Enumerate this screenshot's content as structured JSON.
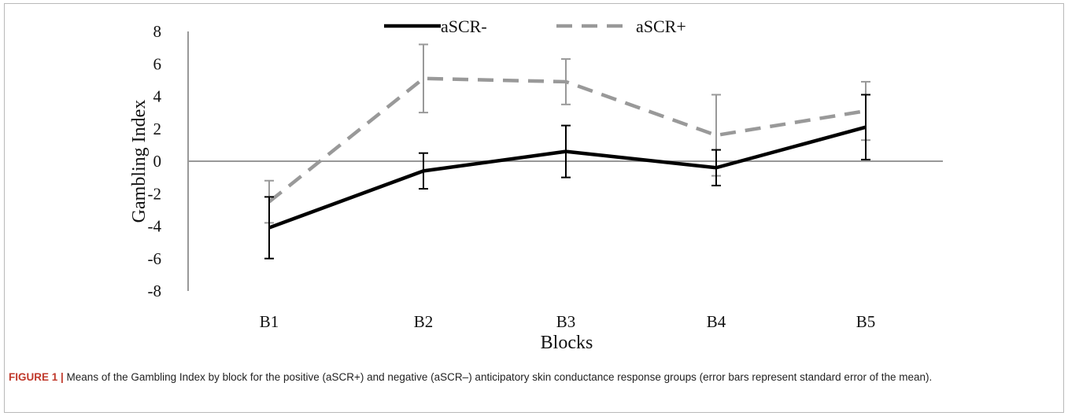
{
  "colors": {
    "series_1": "#000000",
    "series_2": "#999999",
    "axis": "#999999",
    "error_1": "#000000",
    "error_2": "#999999",
    "fig_label": "#c0392b"
  },
  "chart_data": {
    "type": "line",
    "title": "",
    "xlabel": "Blocks",
    "ylabel": "Gambling Index",
    "categories": [
      "B1",
      "B2",
      "B3",
      "B4",
      "B5"
    ],
    "ylim": [
      -8,
      8
    ],
    "yticks": [
      8,
      6,
      4,
      2,
      0,
      -2,
      -4,
      -6,
      -8
    ],
    "grid": false,
    "legend_position": "top",
    "series": [
      {
        "name": "aSCR-",
        "style": "solid",
        "values": [
          -4.1,
          -0.6,
          0.6,
          -0.4,
          2.1
        ],
        "error": [
          1.9,
          1.1,
          1.6,
          1.1,
          2.0
        ]
      },
      {
        "name": "aSCR+",
        "style": "dashed",
        "values": [
          -2.5,
          5.1,
          4.9,
          1.6,
          3.1
        ],
        "error": [
          1.3,
          2.1,
          1.4,
          2.5,
          1.8
        ]
      }
    ]
  },
  "caption": {
    "label": "FIGURE 1 |",
    "text": " Means of the Gambling Index by block for the positive (aSCR+) and negative (aSCR–) anticipatory skin conductance response groups (error bars represent standard error of the mean)."
  }
}
